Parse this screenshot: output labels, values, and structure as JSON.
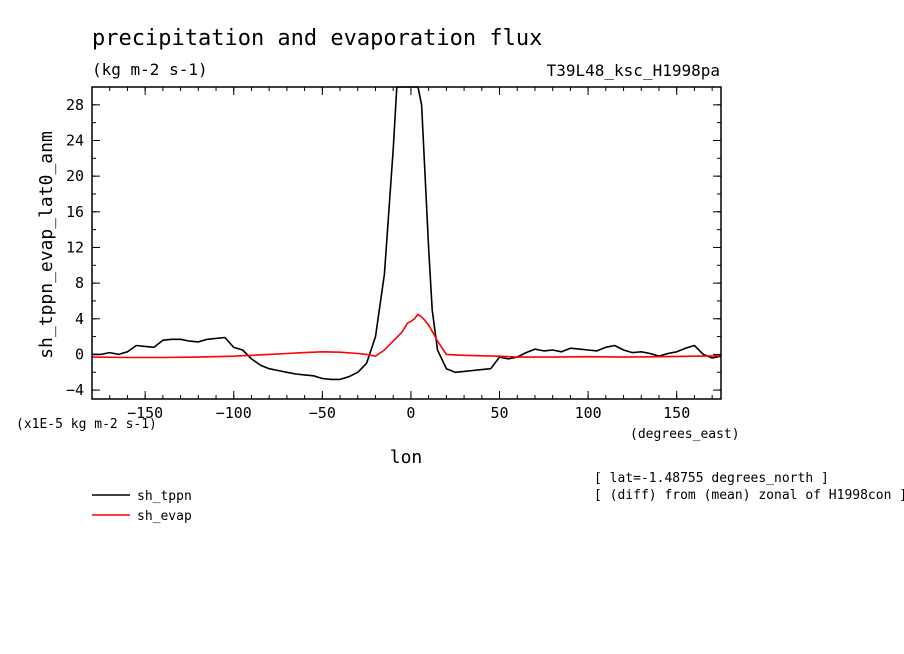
{
  "chart_data": {
    "type": "line",
    "title": "precipitation and evaporation flux",
    "subtitle": "(kg m-2 s-1)",
    "run_label": "T39L48_ksc_H1998pa",
    "ylabel": "sh_tppn_evap_lat0_anm",
    "yunit_label": "(x1E-5 kg m-2 s-1)",
    "xlabel": "lon",
    "xunit_label": "(degrees_east)",
    "xlim": [
      -180,
      175
    ],
    "ylim": [
      -5,
      30
    ],
    "xticks": [
      -150,
      -100,
      -50,
      0,
      50,
      100,
      150
    ],
    "yticks": [
      -4,
      0,
      4,
      8,
      12,
      16,
      20,
      24,
      28
    ],
    "notes": [
      "[ lat=-1.48755 degrees_north ]",
      "[ (diff) from (mean) zonal of H1998con ]"
    ],
    "series": [
      {
        "name": "sh_tppn",
        "color": "#000000",
        "x": [
          -180,
          -175,
          -170,
          -165,
          -160,
          -155,
          -150,
          -145,
          -140,
          -135,
          -130,
          -125,
          -120,
          -115,
          -110,
          -105,
          -100,
          -95,
          -90,
          -85,
          -80,
          -75,
          -70,
          -65,
          -60,
          -55,
          -50,
          -45,
          -40,
          -35,
          -30,
          -25,
          -20,
          -15,
          -10,
          -8,
          -6,
          -4,
          -2,
          0,
          2,
          4,
          6,
          8,
          10,
          12,
          15,
          20,
          25,
          30,
          35,
          40,
          45,
          50,
          55,
          60,
          65,
          70,
          75,
          80,
          85,
          90,
          95,
          100,
          105,
          110,
          115,
          120,
          125,
          130,
          135,
          140,
          145,
          150,
          155,
          160,
          165,
          170,
          175
        ],
        "y": [
          0.0,
          0.0,
          0.2,
          0.0,
          0.3,
          1.0,
          0.9,
          0.8,
          1.6,
          1.7,
          1.7,
          1.5,
          1.4,
          1.7,
          1.8,
          1.9,
          0.8,
          0.5,
          -0.5,
          -1.2,
          -1.6,
          -1.8,
          -2.0,
          -2.2,
          -2.3,
          -2.4,
          -2.7,
          -2.8,
          -2.8,
          -2.5,
          -2.0,
          -1.0,
          2.0,
          9.0,
          23.0,
          30.0,
          30.0,
          30.0,
          30.0,
          30.0,
          30.0,
          30.0,
          28.0,
          20.0,
          12.0,
          5.0,
          0.5,
          -1.6,
          -2.0,
          -1.9,
          -1.8,
          -1.7,
          -1.6,
          -0.3,
          -0.5,
          -0.3,
          0.2,
          0.6,
          0.4,
          0.5,
          0.3,
          0.7,
          0.6,
          0.5,
          0.4,
          0.8,
          1.0,
          0.5,
          0.2,
          0.3,
          0.1,
          -0.2,
          0.1,
          0.3,
          0.7,
          1.0,
          0.0,
          -0.4,
          -0.2
        ]
      },
      {
        "name": "sh_evap",
        "color": "#ff0000",
        "x": [
          -180,
          -160,
          -140,
          -120,
          -100,
          -90,
          -80,
          -70,
          -60,
          -50,
          -40,
          -30,
          -25,
          -20,
          -15,
          -10,
          -5,
          -2,
          0,
          2,
          4,
          6,
          8,
          10,
          12,
          15,
          20,
          25,
          30,
          40,
          50,
          60,
          80,
          100,
          120,
          140,
          160,
          175
        ],
        "y": [
          -0.3,
          -0.35,
          -0.35,
          -0.3,
          -0.2,
          -0.1,
          0.0,
          0.1,
          0.2,
          0.3,
          0.25,
          0.1,
          0.0,
          -0.2,
          0.5,
          1.5,
          2.5,
          3.5,
          3.7,
          4.0,
          4.5,
          4.2,
          3.8,
          3.3,
          2.6,
          1.5,
          0.0,
          -0.05,
          -0.1,
          -0.15,
          -0.2,
          -0.3,
          -0.3,
          -0.25,
          -0.3,
          -0.25,
          -0.2,
          -0.15
        ]
      }
    ],
    "legend": {
      "placement": "bottom-left"
    }
  }
}
